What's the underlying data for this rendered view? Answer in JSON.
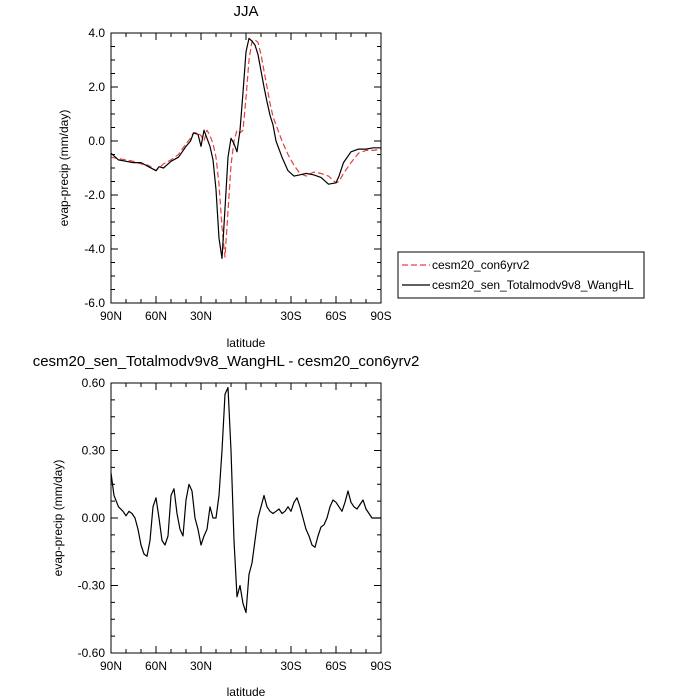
{
  "chart_data": [
    {
      "type": "line",
      "title": "JJA",
      "xlabel": "latitude",
      "ylabel": "evap-precip (mm/day)",
      "xlim": [
        90,
        -90
      ],
      "ylim": [
        -6.0,
        4.0
      ],
      "x_ticks": [
        90,
        60,
        30,
        0,
        -30,
        -60,
        -90
      ],
      "x_tick_labels": [
        "90N",
        "60N",
        "30N",
        "",
        "30S",
        "60S",
        "90S"
      ],
      "y_ticks": [
        -6,
        -4,
        -2,
        0,
        2,
        4
      ],
      "y_tick_labels": [
        "-6.0",
        "-4.0",
        "-2.0",
        "0.0",
        "2.0",
        "4.0"
      ],
      "grid": false,
      "legend": "right",
      "series": [
        {
          "name": "cesm20_con6yrv2",
          "color": "#e8403a",
          "dash": "dashed",
          "x": [
            90,
            85,
            80,
            75,
            70,
            65,
            60,
            55,
            50,
            45,
            40,
            37,
            35,
            32,
            30,
            28,
            26,
            24,
            22,
            20,
            18,
            16,
            14,
            12,
            10,
            8,
            6,
            4,
            2,
            0,
            -2,
            -4,
            -6,
            -8,
            -10,
            -12,
            -14,
            -16,
            -18,
            -20,
            -24,
            -28,
            -32,
            -36,
            -40,
            -45,
            -50,
            -55,
            -60,
            -62,
            -65,
            -70,
            -75,
            -80,
            -85,
            -90
          ],
          "y": [
            -0.6,
            -0.65,
            -0.7,
            -0.75,
            -0.85,
            -0.9,
            -1.1,
            -0.85,
            -0.7,
            -0.5,
            -0.1,
            0.1,
            0.3,
            0.3,
            0.2,
            0.0,
            0.4,
            0.2,
            -0.1,
            -0.6,
            -1.6,
            -3.2,
            -4.3,
            -2.6,
            -0.9,
            0.0,
            0.4,
            0.3,
            0.4,
            1.6,
            3.0,
            3.7,
            3.75,
            3.65,
            3.2,
            2.6,
            2.0,
            1.4,
            0.9,
            0.6,
            0.0,
            -0.5,
            -0.9,
            -1.2,
            -1.3,
            -1.15,
            -1.2,
            -1.3,
            -1.55,
            -1.5,
            -1.2,
            -0.8,
            -0.45,
            -0.35,
            -0.35,
            -0.3
          ]
        },
        {
          "name": "cesm20_sen_Totalmodv9v8_WangHL",
          "color": "#000000",
          "dash": "solid",
          "x": [
            90,
            85,
            80,
            75,
            70,
            65,
            60,
            58,
            55,
            50,
            45,
            40,
            37,
            35,
            32,
            30,
            28,
            26,
            24,
            22,
            20,
            18,
            16,
            14,
            12,
            10,
            8,
            6,
            4,
            2,
            0,
            -2,
            -4,
            -6,
            -8,
            -10,
            -12,
            -14,
            -16,
            -18,
            -20,
            -24,
            -28,
            -32,
            -36,
            -40,
            -45,
            -50,
            -55,
            -60,
            -62,
            -65,
            -70,
            -75,
            -80,
            -85,
            -90
          ],
          "y": [
            -0.45,
            -0.7,
            -0.75,
            -0.8,
            -0.8,
            -0.95,
            -1.1,
            -0.95,
            -1.0,
            -0.75,
            -0.6,
            -0.2,
            0.0,
            0.3,
            0.25,
            -0.2,
            0.4,
            0.1,
            -0.2,
            -0.7,
            -1.8,
            -3.6,
            -4.35,
            -2.5,
            -0.6,
            0.1,
            -0.1,
            -0.4,
            0.4,
            1.8,
            3.3,
            3.8,
            3.7,
            3.55,
            3.2,
            2.6,
            2.0,
            1.45,
            0.95,
            0.6,
            0.0,
            -0.6,
            -1.1,
            -1.3,
            -1.25,
            -1.2,
            -1.25,
            -1.35,
            -1.6,
            -1.55,
            -1.3,
            -0.8,
            -0.4,
            -0.3,
            -0.3,
            -0.25,
            -0.25
          ]
        }
      ]
    },
    {
      "type": "line",
      "title": "cesm20_sen_Totalmodv9v8_WangHL - cesm20_con6yrv2",
      "xlabel": "latitude",
      "ylabel": "evap-precip (mm/day)",
      "xlim": [
        90,
        -90
      ],
      "ylim": [
        -0.6,
        0.6
      ],
      "x_ticks": [
        90,
        60,
        30,
        0,
        -30,
        -60,
        -90
      ],
      "x_tick_labels": [
        "90N",
        "60N",
        "30N",
        "",
        "30S",
        "60S",
        "90S"
      ],
      "y_ticks": [
        -0.6,
        -0.3,
        0.0,
        0.3,
        0.6
      ],
      "y_tick_labels": [
        "-0.60",
        "-0.30",
        "0.00",
        "0.30",
        "0.60"
      ],
      "grid": false,
      "series": [
        {
          "color": "#000000",
          "dash": "solid",
          "x": [
            90,
            88,
            85,
            82,
            80,
            78,
            76,
            74,
            72,
            70,
            68,
            66,
            64,
            62,
            60,
            58,
            56,
            54,
            52,
            50,
            48,
            46,
            44,
            42,
            40,
            38,
            36,
            34,
            32,
            30,
            28,
            26,
            24,
            22,
            20,
            18,
            16,
            14,
            12,
            10,
            8,
            6,
            4,
            2,
            0,
            -2,
            -4,
            -6,
            -8,
            -10,
            -12,
            -14,
            -16,
            -18,
            -20,
            -22,
            -24,
            -26,
            -28,
            -30,
            -32,
            -34,
            -36,
            -38,
            -40,
            -42,
            -44,
            -46,
            -48,
            -50,
            -52,
            -54,
            -56,
            -58,
            -60,
            -62,
            -64,
            -66,
            -68,
            -70,
            -72,
            -74,
            -76,
            -78,
            -80,
            -82,
            -84,
            -86,
            -88,
            -90
          ],
          "y": [
            0.2,
            0.1,
            0.05,
            0.03,
            0.01,
            0.03,
            0.02,
            0.0,
            -0.05,
            -0.12,
            -0.16,
            -0.17,
            -0.1,
            0.05,
            0.09,
            0.0,
            -0.1,
            -0.12,
            -0.08,
            0.1,
            0.13,
            0.02,
            -0.05,
            -0.08,
            0.08,
            0.15,
            0.12,
            0.0,
            -0.05,
            -0.12,
            -0.08,
            -0.05,
            0.05,
            0.0,
            0.0,
            0.1,
            0.3,
            0.55,
            0.58,
            0.3,
            -0.1,
            -0.35,
            -0.3,
            -0.38,
            -0.42,
            -0.25,
            -0.2,
            -0.1,
            0.0,
            0.05,
            0.1,
            0.05,
            0.03,
            0.02,
            0.03,
            0.04,
            0.02,
            0.03,
            0.05,
            0.03,
            0.07,
            0.09,
            0.05,
            0.0,
            -0.05,
            -0.08,
            -0.12,
            -0.13,
            -0.08,
            -0.04,
            -0.03,
            0.0,
            0.05,
            0.08,
            0.07,
            0.05,
            0.03,
            0.07,
            0.12,
            0.07,
            0.05,
            0.04,
            0.06,
            0.08,
            0.04,
            0.02,
            0.0,
            0.0,
            0.0,
            0.0
          ]
        }
      ]
    }
  ]
}
